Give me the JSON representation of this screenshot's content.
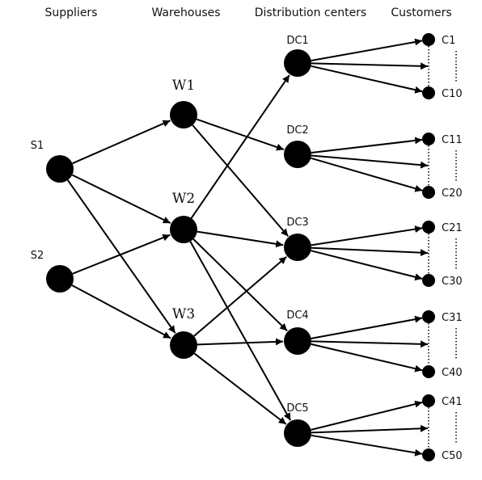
{
  "headers": {
    "suppliers": "Suppliers",
    "warehouses": "Warehouses",
    "distribution_centers": "Distribution centers",
    "customers": "Customers"
  },
  "suppliers": [
    {
      "id": "S1",
      "label": "S1"
    },
    {
      "id": "S2",
      "label": "S2"
    }
  ],
  "warehouses": [
    {
      "id": "W1",
      "label": "W1"
    },
    {
      "id": "W2",
      "label": "W2"
    },
    {
      "id": "W3",
      "label": "W3"
    }
  ],
  "distribution_centers": [
    {
      "id": "DC1",
      "label": "DC1"
    },
    {
      "id": "DC2",
      "label": "DC2"
    },
    {
      "id": "DC3",
      "label": "DC3"
    },
    {
      "id": "DC4",
      "label": "DC4"
    },
    {
      "id": "DC5",
      "label": "DC5"
    }
  ],
  "customer_groups": [
    {
      "dc": "DC1",
      "first": "C1",
      "last": "C10"
    },
    {
      "dc": "DC2",
      "first": "C11",
      "last": "C20"
    },
    {
      "dc": "DC3",
      "first": "C21",
      "last": "C30"
    },
    {
      "dc": "DC4",
      "first": "C31",
      "last": "C40"
    },
    {
      "dc": "DC5",
      "first": "C41",
      "last": "C50"
    }
  ],
  "edges": [
    [
      "S1",
      "W1"
    ],
    [
      "S1",
      "W2"
    ],
    [
      "S1",
      "W3"
    ],
    [
      "S2",
      "W2"
    ],
    [
      "S2",
      "W3"
    ],
    [
      "W1",
      "DC2"
    ],
    [
      "W1",
      "DC3"
    ],
    [
      "W2",
      "DC1"
    ],
    [
      "W2",
      "DC3"
    ],
    [
      "W2",
      "DC4"
    ],
    [
      "W2",
      "DC5"
    ],
    [
      "W3",
      "DC3"
    ],
    [
      "W3",
      "DC4"
    ],
    [
      "W3",
      "DC5"
    ]
  ]
}
